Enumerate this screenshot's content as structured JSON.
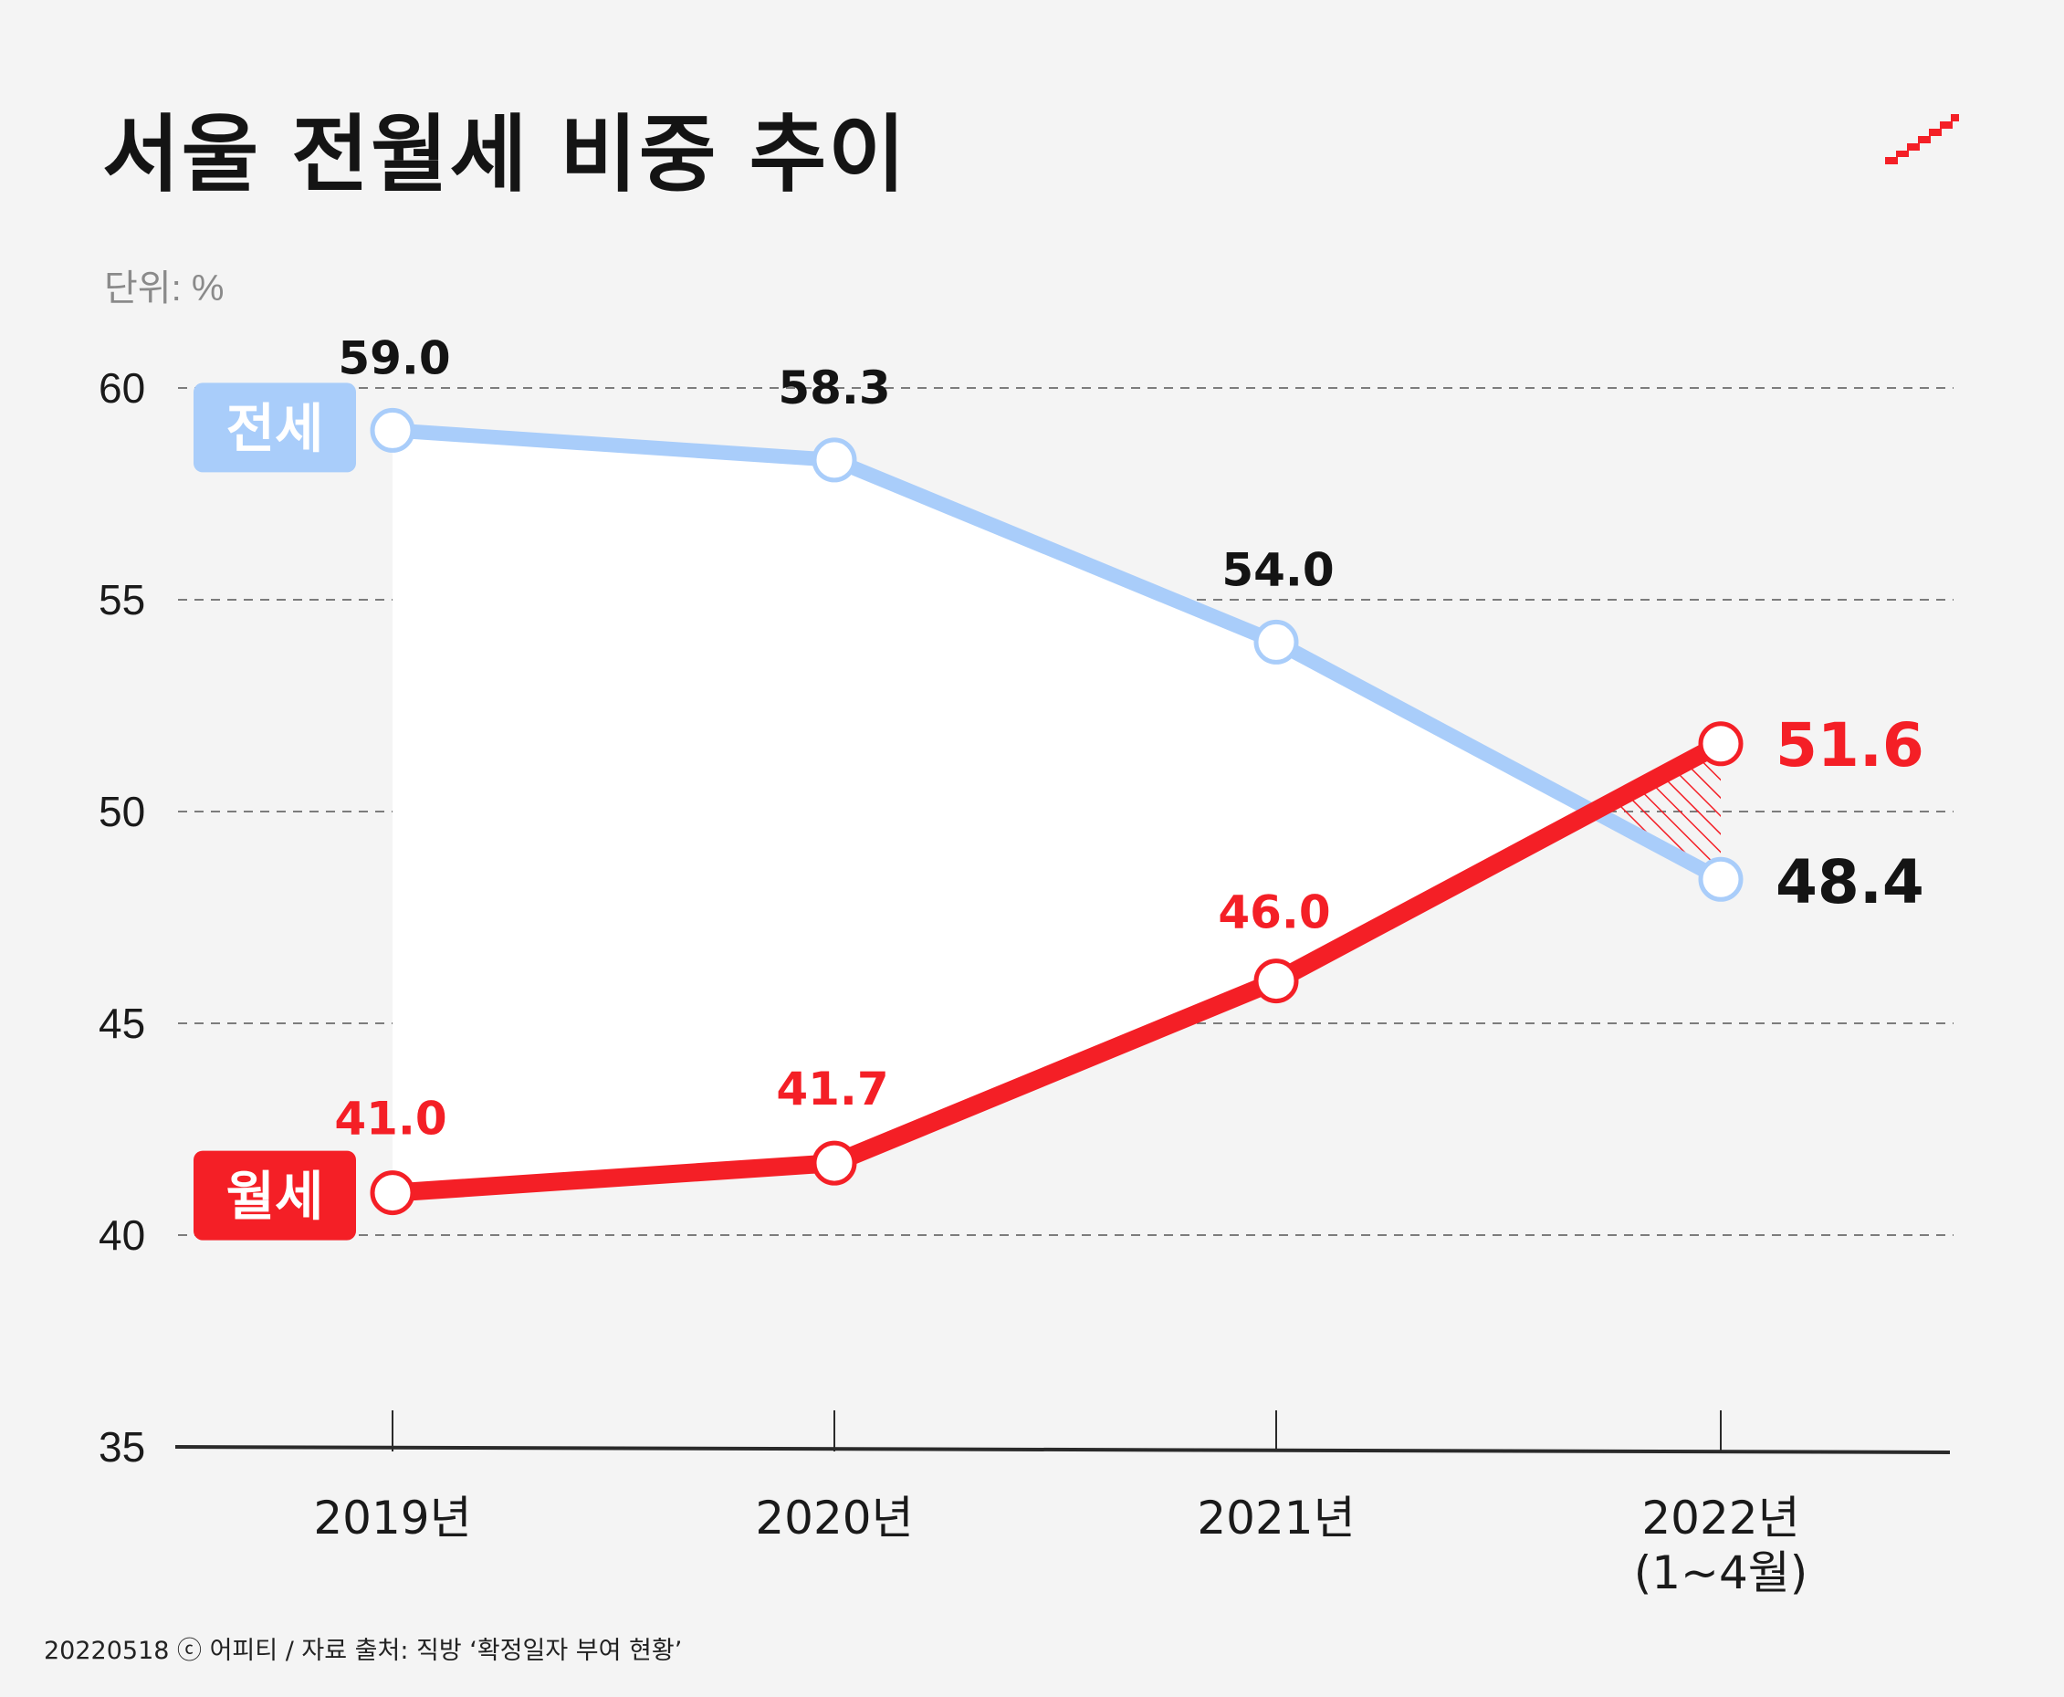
{
  "header": {
    "title": "서울 전월세 비중 추이",
    "unit_label": "단위: %"
  },
  "footer": {
    "credit": "20220518 ⓒ 어피티 / 자료 출처: 직방 ‘확정일자 부여 현황’"
  },
  "colors": {
    "jeonse": "#a9cdfa",
    "wolse": "#f41f26",
    "text_dark": "#141414",
    "background": "#f4f4f4"
  },
  "chart_data": {
    "type": "line",
    "title": "서울 전월세 비중 추이",
    "ylabel": "단위: %",
    "xlabel": "",
    "categories": [
      "2019년",
      "2020년",
      "2021년",
      "2022년\n(1~4월)"
    ],
    "ylim": [
      35,
      60
    ],
    "yticks": [
      35,
      40,
      45,
      50,
      55,
      60
    ],
    "grid": true,
    "series": [
      {
        "name": "전세",
        "values": [
          59.0,
          58.3,
          54.0,
          48.4
        ],
        "labels": [
          "59.0",
          "58.3",
          "54.0",
          "48.4"
        ]
      },
      {
        "name": "월세",
        "values": [
          41.0,
          41.7,
          46.0,
          51.6
        ],
        "labels": [
          "41.0",
          "41.7",
          "46.0",
          "51.6"
        ]
      }
    ]
  }
}
